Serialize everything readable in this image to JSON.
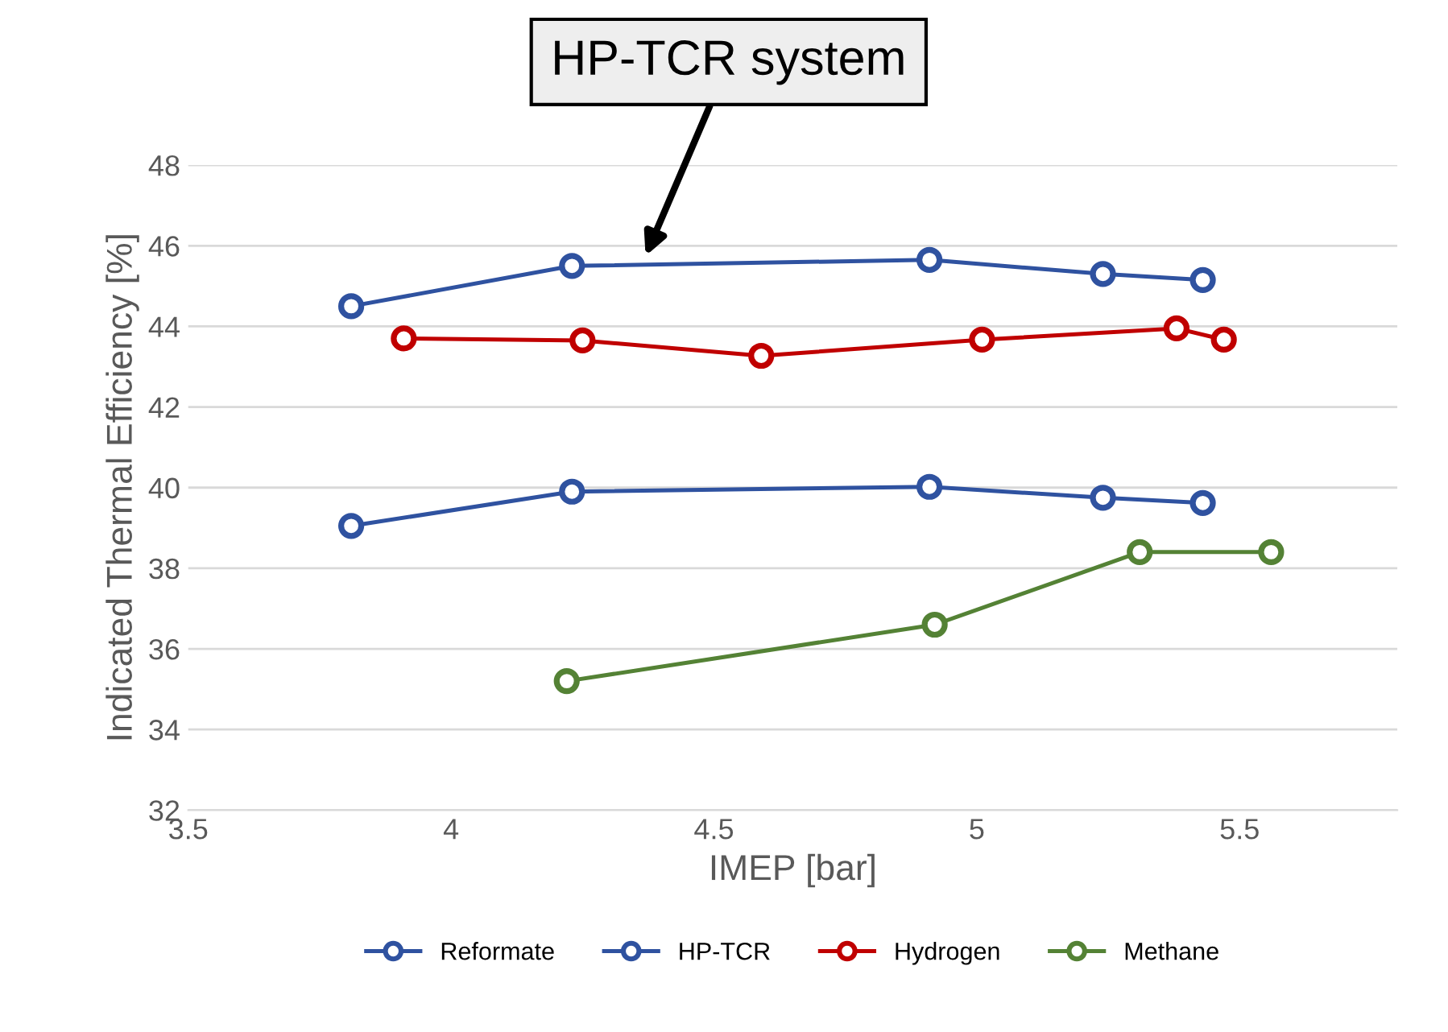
{
  "chart_data": {
    "type": "line",
    "xlabel": "IMEP [bar]",
    "ylabel": "Indicated Thermal Efficiency [%]",
    "xlim": [
      3.5,
      5.8
    ],
    "xticks": [
      3.5,
      4,
      4.5,
      5,
      5.5
    ],
    "ylim": [
      32,
      48
    ],
    "yticks": [
      32,
      34,
      36,
      38,
      40,
      42,
      44,
      46,
      48
    ],
    "grid": "y",
    "legend": "bottom",
    "marker": "circle",
    "annotations": [
      {
        "text": "HP-TCR system",
        "x": 4.37,
        "y": 45.75
      }
    ],
    "series": [
      {
        "name": "Reformate",
        "color": "#2f52a0",
        "x": [
          3.81,
          4.23,
          4.91,
          5.24,
          5.43
        ],
        "values": [
          39.05,
          39.9,
          40.02,
          39.75,
          39.62
        ]
      },
      {
        "name": "HP-TCR",
        "color": "#2f52a0",
        "x": [
          3.81,
          4.23,
          4.91,
          5.24,
          5.43
        ],
        "values": [
          44.5,
          45.5,
          45.65,
          45.3,
          45.15
        ]
      },
      {
        "name": "Hydrogen",
        "color": "#c00000",
        "x": [
          3.91,
          4.25,
          4.59,
          5.01,
          5.38,
          5.47
        ],
        "values": [
          43.7,
          43.65,
          43.27,
          43.67,
          43.95,
          43.67
        ]
      },
      {
        "name": "Methane",
        "color": "#548235",
        "x": [
          4.22,
          4.92,
          5.31,
          5.56
        ],
        "values": [
          35.2,
          36.6,
          38.4,
          38.4
        ]
      }
    ]
  }
}
